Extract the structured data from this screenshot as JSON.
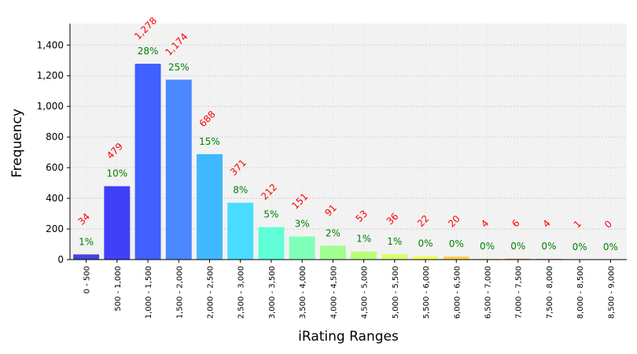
{
  "chart_data": {
    "type": "bar",
    "xlabel": "iRating Ranges",
    "ylabel": "Frequency",
    "ylim": [
      0,
      1540
    ],
    "yticks": [
      0,
      200,
      400,
      600,
      800,
      1000,
      1200,
      1400
    ],
    "ytick_labels": [
      "0",
      "200",
      "400",
      "600",
      "800",
      "1,000",
      "1,200",
      "1,400"
    ],
    "grid": true,
    "categories": [
      "0 - 500",
      "500 - 1,000",
      "1,000 - 1,500",
      "1,500 - 2,000",
      "2,000 - 2,500",
      "2,500 - 3,000",
      "3,000 - 3,500",
      "3,500 - 4,000",
      "4,000 - 4,500",
      "4,500 - 5,000",
      "5,000 - 5,500",
      "5,500 - 6,000",
      "6,000 - 6,500",
      "6,500 - 7,000",
      "7,000 - 7,500",
      "7,500 - 8,000",
      "8,000 - 8,500",
      "8,500 - 9,000"
    ],
    "values": [
      34,
      479,
      1278,
      1174,
      688,
      371,
      212,
      151,
      91,
      53,
      36,
      22,
      20,
      4,
      6,
      4,
      1,
      0
    ],
    "count_labels": [
      "34",
      "479",
      "1,278",
      "1,174",
      "688",
      "371",
      "212",
      "151",
      "91",
      "53",
      "36",
      "22",
      "20",
      "4",
      "6",
      "4",
      "1",
      "0"
    ],
    "percent_labels": [
      "1%",
      "10%",
      "28%",
      "25%",
      "15%",
      "8%",
      "5%",
      "3%",
      "2%",
      "1%",
      "1%",
      "0%",
      "0%",
      "0%",
      "0%",
      "0%",
      "0%",
      "0%"
    ],
    "colors": [
      "#4444dd",
      "#4040f8",
      "#4060ff",
      "#4a88ff",
      "#40b8ff",
      "#48dcff",
      "#60ffd8",
      "#80ffb8",
      "#a0ff90",
      "#b8ff78",
      "#d8ff70",
      "#f0ff60",
      "#ffd048",
      "#ffb040",
      "#ff9838",
      "#ff7830",
      "#ff5830",
      "#ff3020"
    ]
  }
}
